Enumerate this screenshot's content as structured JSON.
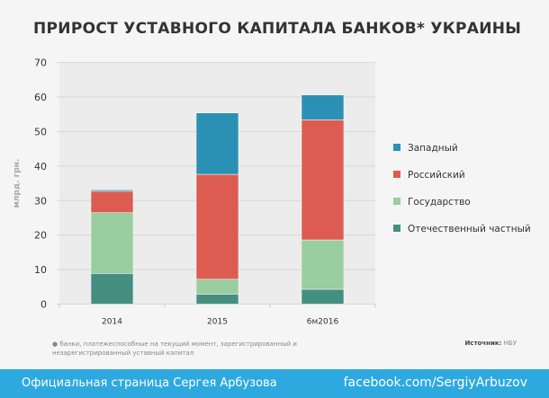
{
  "title": "ПРИРОСТ УСТАВНОГО КАПИТАЛА БАНКОВ* УКРАИНЫ",
  "chart_data": {
    "type": "bar",
    "stacked": true,
    "title": "ПРИРОСТ УСТАВНОГО КАПИТАЛА БАНКОВ* УКРАИНЫ",
    "ylabel": "млрд. грн.",
    "xlabel": "",
    "ylim": [
      0,
      70
    ],
    "yticks": [
      0,
      10,
      20,
      30,
      40,
      50,
      60,
      70
    ],
    "grid": true,
    "legend_position": "right",
    "categories": [
      "2014",
      "2015",
      "6м2016"
    ],
    "series": [
      {
        "name": "Отечественный частный",
        "color": "#448f80",
        "values": [
          8.9,
          2.9,
          4.3
        ]
      },
      {
        "name": "Государство",
        "color": "#9acd9f",
        "values": [
          17.6,
          4.3,
          14.3
        ]
      },
      {
        "name": "Российский",
        "color": "#dc5c52",
        "values": [
          6.2,
          30.4,
          34.8
        ]
      },
      {
        "name": "Западный",
        "color": "#2a91b4",
        "values": [
          0.4,
          17.8,
          7.2
        ]
      }
    ]
  },
  "note": "банки, платежеспособные на текущий момент, зарегистрированный и незарегистрированный уставный капитал",
  "source_label": "Источник:",
  "source_value": "НБУ",
  "footer": {
    "left": "Официальная страница Сергея Арбузова",
    "right": "facebook.com/SergiyArbuzov"
  }
}
